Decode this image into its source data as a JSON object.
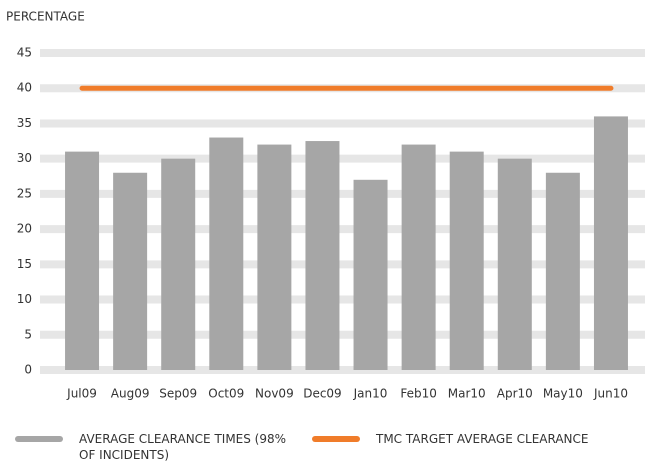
{
  "chart_data": {
    "type": "bar",
    "y_label": "PERCENTAGE",
    "categories": [
      "Jul09",
      "Aug09",
      "Sep09",
      "Oct09",
      "Nov09",
      "Dec09",
      "Jan10",
      "Feb10",
      "Mar10",
      "Apr10",
      "May10",
      "Jun10"
    ],
    "series": [
      {
        "name": "AVERAGE CLEARANCE TIMES (98% OF INCIDENTS)",
        "color": "#a6a6a6",
        "type": "bar",
        "values": [
          31,
          28,
          30,
          33,
          32,
          32.5,
          27,
          32,
          31,
          30,
          28,
          36
        ]
      },
      {
        "name": "TMC TARGET AVERAGE CLEARANCE",
        "color": "#f07c2a",
        "type": "line",
        "values": [
          40,
          40,
          40,
          40,
          40,
          40,
          40,
          40,
          40,
          40,
          40,
          40
        ]
      }
    ],
    "ylim": [
      0,
      45
    ],
    "yticks": [
      0,
      5,
      10,
      15,
      20,
      25,
      30,
      35,
      40,
      45
    ],
    "grid": true
  }
}
